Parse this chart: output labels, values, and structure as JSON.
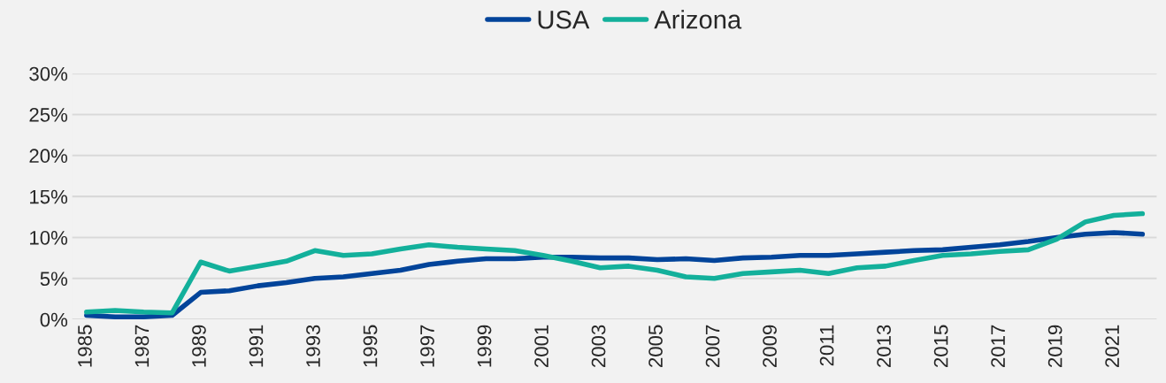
{
  "chart_data": {
    "type": "line",
    "categories": [
      "1985",
      null,
      "1987",
      null,
      "1989",
      null,
      "1991",
      null,
      "1993",
      null,
      "1995",
      null,
      "1997",
      null,
      "1999",
      null,
      "2001",
      null,
      "2003",
      null,
      "2005",
      null,
      "2007",
      null,
      "2009",
      null,
      "2011",
      null,
      "2013",
      null,
      "2015",
      null,
      "2017",
      null,
      "2019",
      null,
      "2021",
      null
    ],
    "series": [
      {
        "name": "USA",
        "color": "#02449a",
        "values": [
          0.5,
          0.3,
          0.3,
          0.5,
          3.3,
          3.5,
          4.1,
          4.5,
          5.0,
          5.2,
          5.6,
          6.0,
          6.7,
          7.1,
          7.4,
          7.4,
          7.6,
          7.6,
          7.5,
          7.5,
          7.3,
          7.4,
          7.2,
          7.5,
          7.6,
          7.8,
          7.8,
          8.0,
          8.2,
          8.4,
          8.5,
          8.8,
          9.1,
          9.5,
          10.0,
          10.4,
          10.6,
          10.4
        ]
      },
      {
        "name": "Arizona",
        "color": "#13b09b",
        "values": [
          0.9,
          1.1,
          0.9,
          0.8,
          7.0,
          5.9,
          6.5,
          7.1,
          8.4,
          7.8,
          8.0,
          8.6,
          9.1,
          8.8,
          8.6,
          8.4,
          7.8,
          7.1,
          6.3,
          6.5,
          6.0,
          5.2,
          5.0,
          5.6,
          5.8,
          6.0,
          5.6,
          6.3,
          6.5,
          7.2,
          7.8,
          8.0,
          8.3,
          8.5,
          9.8,
          11.9,
          12.7,
          12.9
        ]
      }
    ],
    "ylim": [
      0,
      30
    ],
    "yticks": [
      {
        "value": 0,
        "label": "0%"
      },
      {
        "value": 5,
        "label": "5%"
      },
      {
        "value": 10,
        "label": "10%"
      },
      {
        "value": 15,
        "label": "15%"
      },
      {
        "value": 20,
        "label": "20%"
      },
      {
        "value": 25,
        "label": "25%"
      },
      {
        "value": 30,
        "label": "30%"
      }
    ],
    "grid": "y",
    "legend": "top",
    "marker": "none",
    "line_style": "solid"
  }
}
